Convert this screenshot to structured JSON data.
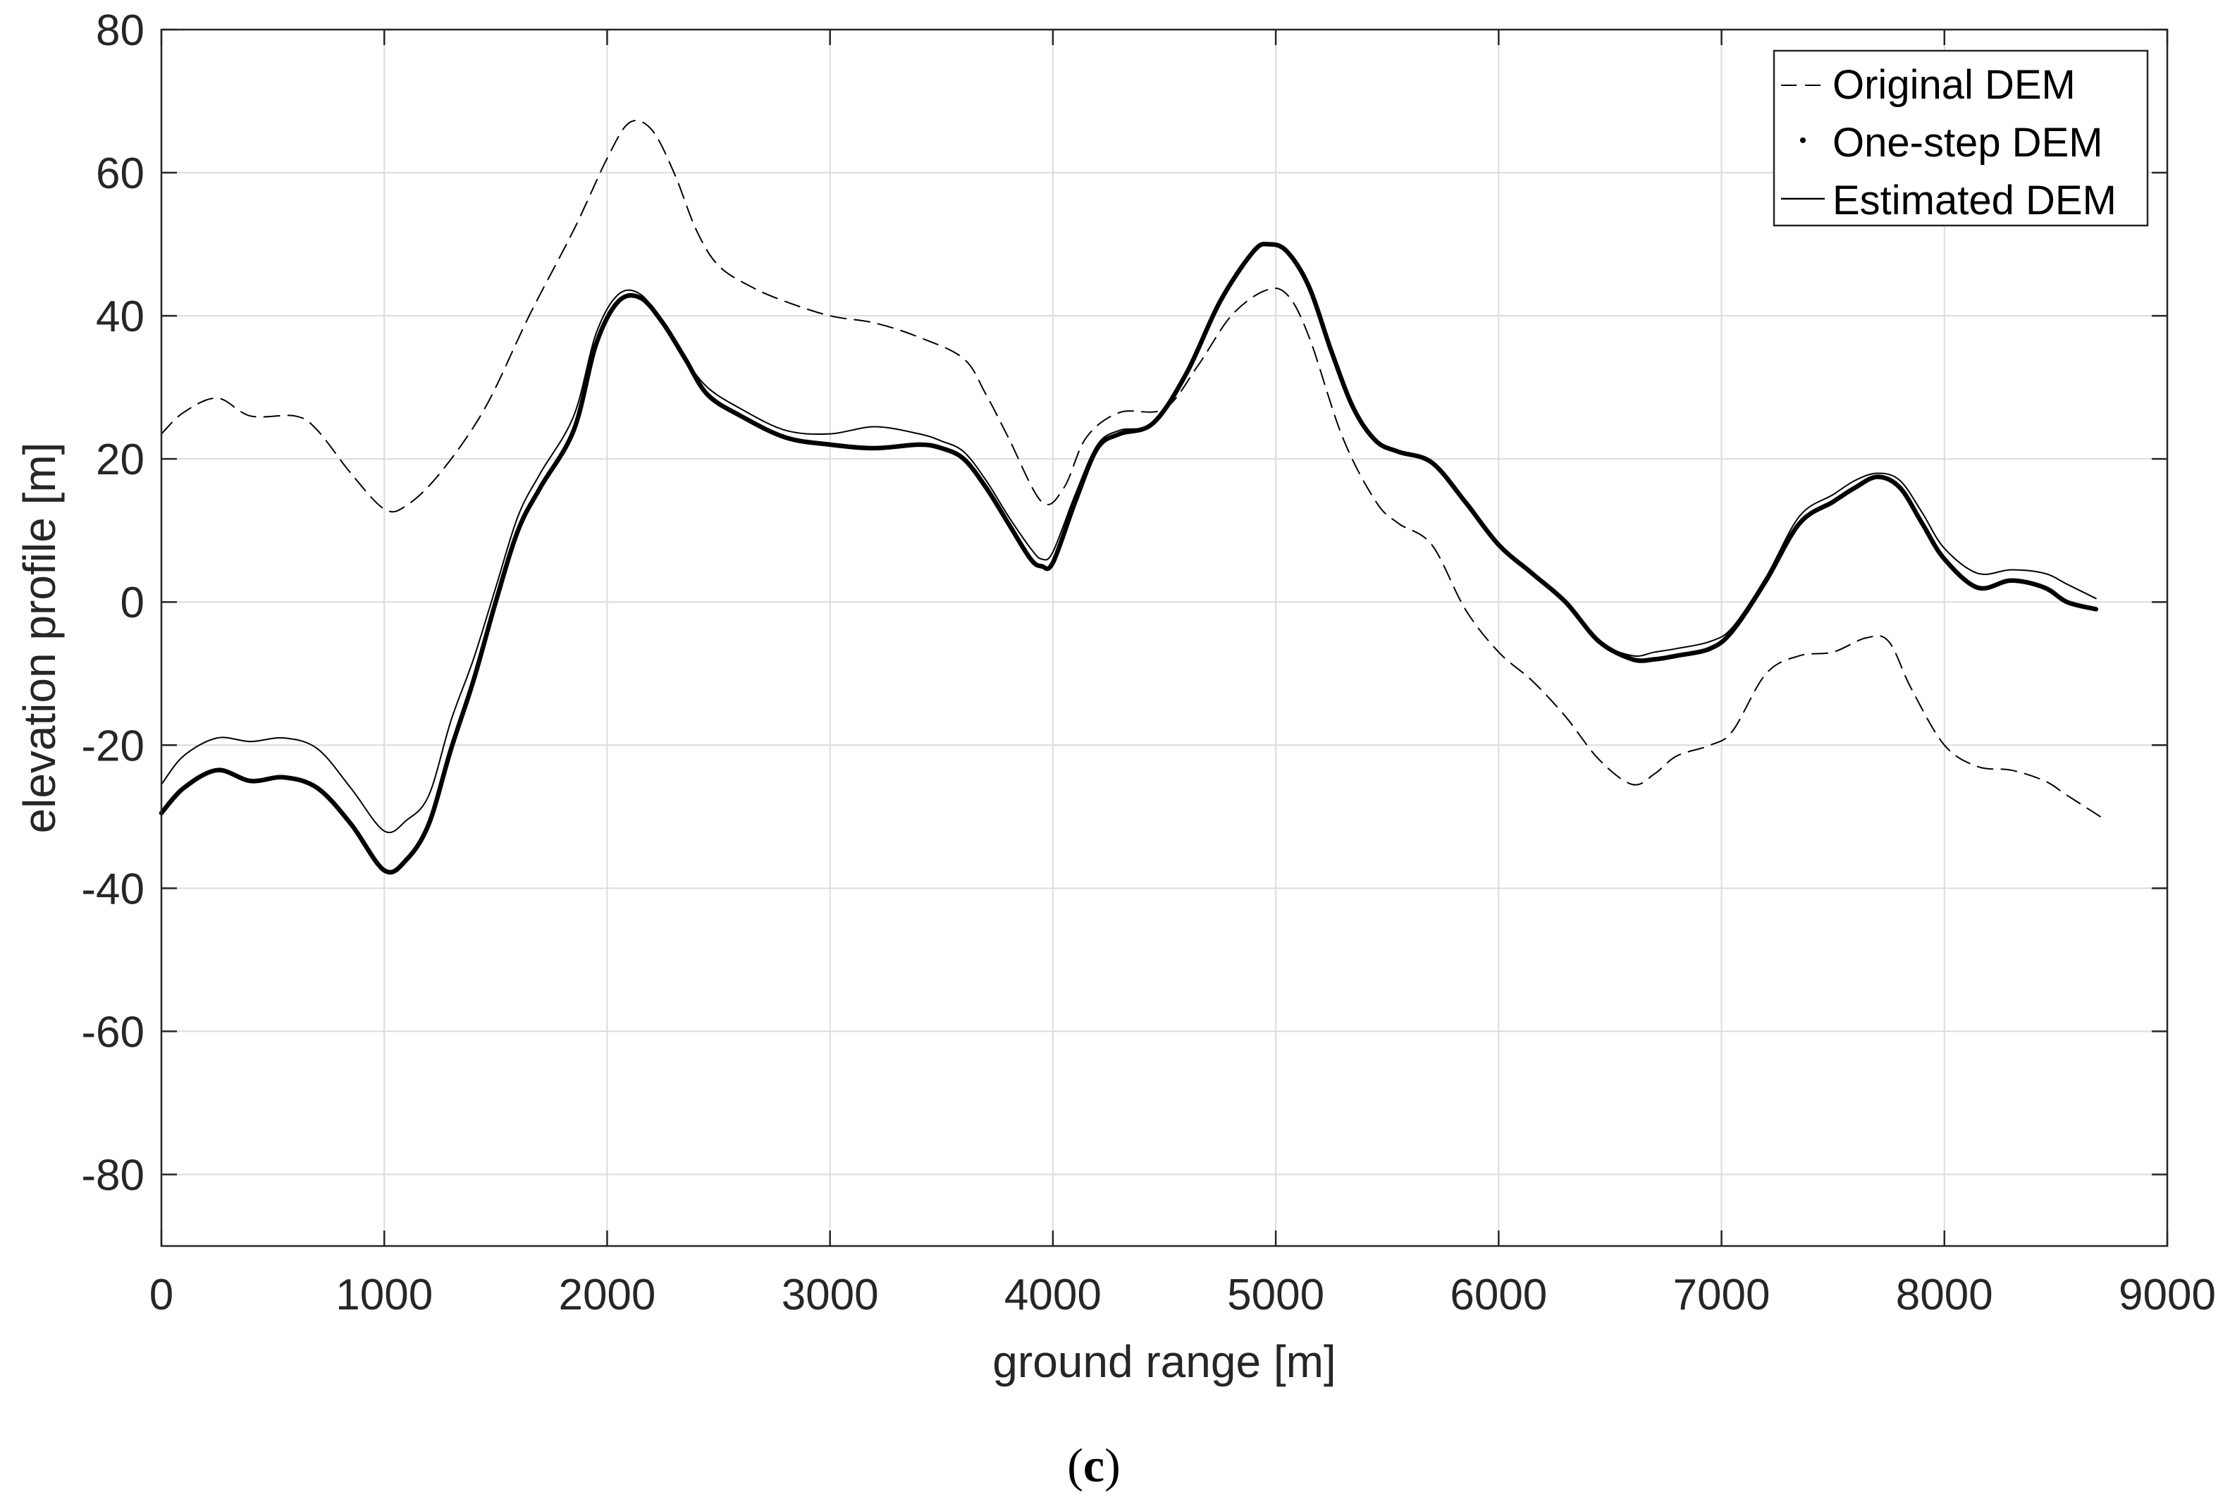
{
  "chart_data": {
    "type": "line",
    "xlabel": "ground range [m]",
    "ylabel": "elevation profile [m]",
    "xlim": [
      0,
      9000
    ],
    "ylim": [
      -90,
      80
    ],
    "xticks": [
      0,
      1000,
      2000,
      3000,
      4000,
      5000,
      6000,
      7000,
      8000,
      9000
    ],
    "yticks": [
      -80,
      -60,
      -40,
      -20,
      0,
      20,
      40,
      60,
      80
    ],
    "grid": true,
    "legend_position": "top-right",
    "caption": {
      "open": "(",
      "letter": "c",
      "close": ")"
    },
    "series": [
      {
        "name": "Original DEM",
        "style": "dashed",
        "color": "#000000",
        "x": [
          0,
          100,
          250,
          400,
          600,
          700,
          850,
          1000,
          1100,
          1250,
          1450,
          1650,
          1850,
          2000,
          2100,
          2200,
          2300,
          2400,
          2500,
          2650,
          2800,
          3000,
          3200,
          3400,
          3600,
          3700,
          3800,
          3950,
          4050,
          4150,
          4300,
          4500,
          4650,
          4800,
          4950,
          5050,
          5150,
          5300,
          5450,
          5550,
          5700,
          5850,
          6000,
          6150,
          6300,
          6450,
          6600,
          6700,
          6800,
          6950,
          7050,
          7200,
          7350,
          7500,
          7650,
          7750,
          7850,
          8000,
          8150,
          8300,
          8450,
          8550,
          8700
        ],
        "values": [
          23.5,
          26.5,
          28.5,
          26,
          26,
          24,
          18,
          13,
          13.5,
          18,
          27,
          40,
          52,
          62,
          67,
          66,
          60,
          52,
          47,
          44,
          42,
          40,
          39,
          37,
          34,
          29,
          23,
          14,
          16,
          23,
          26.5,
          27,
          33,
          40,
          43.5,
          43,
          37,
          23,
          14,
          11,
          8,
          -1,
          -7,
          -11,
          -16,
          -22,
          -25.5,
          -24,
          -21.5,
          -20,
          -18,
          -10,
          -7.5,
          -7,
          -5,
          -5.5,
          -12,
          -20,
          -23,
          -23.5,
          -25,
          -27,
          -30
        ]
      },
      {
        "name": "One-step DEM",
        "style": "dotted-thick",
        "color": "#000000",
        "x": [
          0,
          100,
          250,
          400,
          550,
          700,
          850,
          1000,
          1100,
          1200,
          1300,
          1400,
          1500,
          1600,
          1700,
          1850,
          1950,
          2050,
          2150,
          2250,
          2350,
          2450,
          2600,
          2800,
          3000,
          3200,
          3400,
          3500,
          3600,
          3700,
          3800,
          3900,
          3950,
          4000,
          4100,
          4200,
          4300,
          4450,
          4600,
          4750,
          4900,
          4970,
          5050,
          5150,
          5250,
          5350,
          5450,
          5550,
          5700,
          5850,
          6000,
          6150,
          6300,
          6450,
          6600,
          6700,
          6800,
          6950,
          7050,
          7200,
          7350,
          7500,
          7600,
          7700,
          7800,
          7900,
          8000,
          8150,
          8300,
          8450,
          8550,
          8680
        ],
        "values": [
          -29.5,
          -26,
          -23.5,
          -25,
          -24.5,
          -26,
          -31,
          -37.5,
          -36,
          -31,
          -20.5,
          -11,
          0,
          10,
          16,
          24,
          36,
          42,
          42.5,
          39,
          34,
          29,
          26,
          23,
          22,
          21.5,
          22,
          21.5,
          20,
          16,
          11,
          6,
          5,
          5.5,
          14,
          21.5,
          23.5,
          25,
          32,
          42,
          49,
          50,
          49,
          44,
          35,
          27,
          22.5,
          21,
          19.5,
          14,
          8,
          4,
          0,
          -5.5,
          -8,
          -8,
          -7.5,
          -6.5,
          -4,
          3,
          11,
          14,
          16,
          17.5,
          16,
          11,
          6,
          2,
          3,
          2,
          0,
          -1
        ]
      },
      {
        "name": "Estimated DEM",
        "style": "solid",
        "color": "#000000",
        "x": [
          0,
          100,
          250,
          400,
          550,
          700,
          850,
          1000,
          1100,
          1200,
          1300,
          1400,
          1500,
          1600,
          1700,
          1850,
          1950,
          2050,
          2150,
          2250,
          2350,
          2450,
          2600,
          2800,
          3000,
          3200,
          3400,
          3500,
          3600,
          3700,
          3800,
          3900,
          3950,
          4000,
          4100,
          4200,
          4300,
          4450,
          4600,
          4750,
          4900,
          4970,
          5050,
          5150,
          5250,
          5350,
          5450,
          5550,
          5700,
          5850,
          6000,
          6150,
          6300,
          6450,
          6600,
          6700,
          6800,
          6950,
          7050,
          7200,
          7350,
          7500,
          7600,
          7700,
          7800,
          7900,
          8000,
          8150,
          8300,
          8450,
          8550,
          8680
        ],
        "values": [
          -25.5,
          -21.5,
          -19,
          -19.5,
          -19,
          -20.5,
          -26,
          -32,
          -30.5,
          -27,
          -16.5,
          -8,
          2,
          12,
          18,
          26,
          37.5,
          43,
          43,
          39,
          34,
          30,
          27,
          24,
          23.5,
          24.5,
          23.5,
          22.5,
          21,
          17,
          12,
          7.5,
          6,
          7,
          15,
          22,
          24,
          25,
          32,
          42,
          49,
          50,
          49,
          44,
          35,
          27,
          22.5,
          21,
          19.5,
          14,
          8,
          4,
          0,
          -5.5,
          -7.5,
          -7,
          -6.5,
          -5.5,
          -3.5,
          3.5,
          12,
          15,
          17,
          18,
          17,
          12.5,
          7.5,
          4,
          4.5,
          4,
          2.5,
          0.5
        ]
      }
    ]
  }
}
